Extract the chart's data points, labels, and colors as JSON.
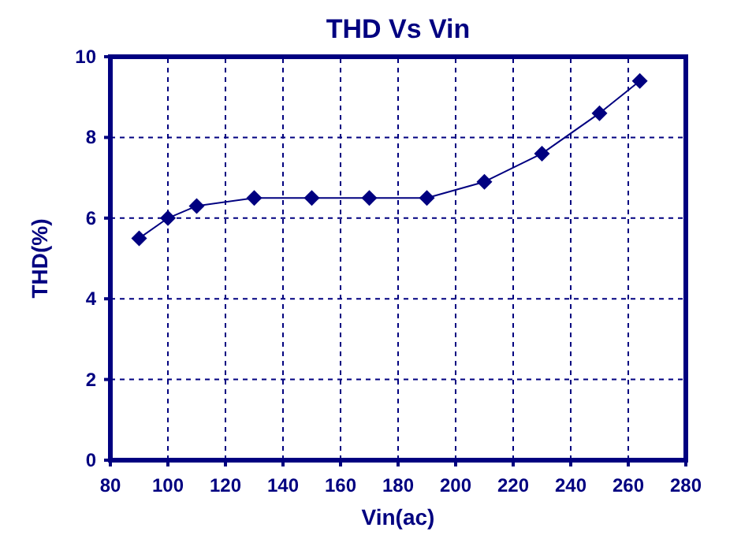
{
  "chart_data": {
    "type": "line",
    "title": "THD  Vs Vin",
    "xlabel": "Vin(ac)",
    "ylabel": "THD(%)",
    "x": [
      90,
      100,
      110,
      130,
      150,
      170,
      190,
      210,
      230,
      250,
      264
    ],
    "series": [
      {
        "color": "#000080",
        "values": [
          5.5,
          6.0,
          6.3,
          6.5,
          6.5,
          6.5,
          6.5,
          6.9,
          7.6,
          8.6,
          9.4
        ]
      }
    ],
    "xlim": [
      80,
      280
    ],
    "xticks": [
      80,
      100,
      120,
      140,
      160,
      180,
      200,
      220,
      240,
      260,
      280
    ],
    "ylim": [
      0,
      10
    ],
    "yticks": [
      0,
      2,
      4,
      6,
      8,
      10
    ],
    "grid": true,
    "marker": "diamond",
    "line_style": "solid"
  }
}
